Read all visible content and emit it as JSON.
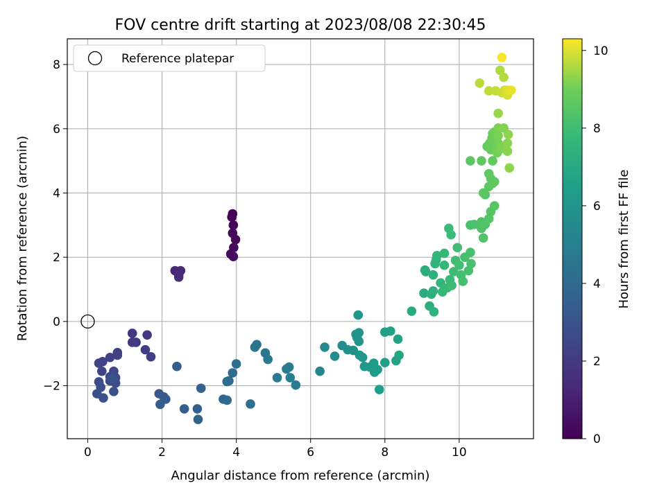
{
  "chart_data": {
    "type": "scatter",
    "title": "FOV centre drift starting at 2023/08/08 22:30:45",
    "xlabel": "Angular distance from reference (arcmin)",
    "ylabel": "Rotation from reference (arcmin)",
    "xlim": [
      -0.55,
      12.0
    ],
    "ylim": [
      -3.65,
      8.8
    ],
    "xticks": [
      0,
      2,
      4,
      6,
      8,
      10
    ],
    "yticks": [
      -2,
      0,
      2,
      4,
      6,
      8
    ],
    "grid": true,
    "legend": {
      "placement": "top-left",
      "entries": [
        "Reference platepar"
      ]
    },
    "reference_point": {
      "x": 0,
      "y": 0
    },
    "colorbar": {
      "label": "Hours from first FF file",
      "range": [
        0,
        10.3
      ],
      "ticks": [
        0,
        2,
        4,
        6,
        8,
        10
      ],
      "colormap": "viridis"
    },
    "points": [
      {
        "x": 3.9,
        "y": 3.35,
        "c": 0.05
      },
      {
        "x": 3.88,
        "y": 3.25,
        "c": 0.1
      },
      {
        "x": 3.92,
        "y": 3.0,
        "c": 0.15
      },
      {
        "x": 3.9,
        "y": 2.75,
        "c": 0.2
      },
      {
        "x": 3.98,
        "y": 2.55,
        "c": 0.25
      },
      {
        "x": 3.93,
        "y": 2.3,
        "c": 0.3
      },
      {
        "x": 3.85,
        "y": 2.1,
        "c": 0.35
      },
      {
        "x": 3.92,
        "y": 2.02,
        "c": 0.4
      },
      {
        "x": 2.35,
        "y": 1.58,
        "c": 1.3
      },
      {
        "x": 2.5,
        "y": 1.58,
        "c": 1.35
      },
      {
        "x": 2.45,
        "y": 1.45,
        "c": 1.4
      },
      {
        "x": 2.45,
        "y": 1.38,
        "c": 1.45
      },
      {
        "x": 1.2,
        "y": -0.37,
        "c": 1.9
      },
      {
        "x": 1.6,
        "y": -0.42,
        "c": 1.95
      },
      {
        "x": 1.3,
        "y": -0.65,
        "c": 2.0
      },
      {
        "x": 1.2,
        "y": -0.65,
        "c": 2.05
      },
      {
        "x": 1.55,
        "y": -0.88,
        "c": 2.1
      },
      {
        "x": 1.7,
        "y": -1.1,
        "c": 2.15
      },
      {
        "x": 0.8,
        "y": -0.97,
        "c": 2.2
      },
      {
        "x": 0.8,
        "y": -1.05,
        "c": 2.25
      },
      {
        "x": 0.6,
        "y": -1.12,
        "c": 2.3
      },
      {
        "x": 0.4,
        "y": -1.25,
        "c": 2.35
      },
      {
        "x": 0.3,
        "y": -1.3,
        "c": 2.4
      },
      {
        "x": 0.38,
        "y": -1.55,
        "c": 2.45
      },
      {
        "x": 0.7,
        "y": -1.55,
        "c": 2.5
      },
      {
        "x": 0.6,
        "y": -1.72,
        "c": 2.55
      },
      {
        "x": 0.75,
        "y": -1.75,
        "c": 2.6
      },
      {
        "x": 0.3,
        "y": -1.88,
        "c": 2.65
      },
      {
        "x": 0.6,
        "y": -1.85,
        "c": 2.7
      },
      {
        "x": 0.75,
        "y": -1.92,
        "c": 2.75
      },
      {
        "x": 0.35,
        "y": -2.05,
        "c": 2.8
      },
      {
        "x": 0.25,
        "y": -2.25,
        "c": 2.85
      },
      {
        "x": 0.7,
        "y": -2.18,
        "c": 2.9
      },
      {
        "x": 0.42,
        "y": -2.38,
        "c": 2.95
      },
      {
        "x": 0.65,
        "y": -1.78,
        "c": 3.0
      },
      {
        "x": 1.92,
        "y": -2.25,
        "c": 3.2
      },
      {
        "x": 2.05,
        "y": -2.35,
        "c": 3.25
      },
      {
        "x": 2.1,
        "y": -2.42,
        "c": 3.3
      },
      {
        "x": 1.95,
        "y": -2.58,
        "c": 3.35
      },
      {
        "x": 2.4,
        "y": -1.4,
        "c": 3.4
      },
      {
        "x": 2.6,
        "y": -2.72,
        "c": 3.5
      },
      {
        "x": 2.95,
        "y": -2.72,
        "c": 3.55
      },
      {
        "x": 3.05,
        "y": -2.08,
        "c": 3.6
      },
      {
        "x": 2.97,
        "y": -3.05,
        "c": 3.65
      },
      {
        "x": 3.65,
        "y": -2.42,
        "c": 3.9
      },
      {
        "x": 3.75,
        "y": -2.45,
        "c": 3.95
      },
      {
        "x": 3.75,
        "y": -1.87,
        "c": 4.0
      },
      {
        "x": 3.8,
        "y": -1.85,
        "c": 4.05
      },
      {
        "x": 3.9,
        "y": -1.6,
        "c": 4.1
      },
      {
        "x": 4.0,
        "y": -1.32,
        "c": 4.15
      },
      {
        "x": 4.38,
        "y": -2.57,
        "c": 4.25
      },
      {
        "x": 4.5,
        "y": -0.8,
        "c": 4.4
      },
      {
        "x": 4.55,
        "y": -0.72,
        "c": 4.45
      },
      {
        "x": 4.78,
        "y": -0.98,
        "c": 4.55
      },
      {
        "x": 4.85,
        "y": -1.18,
        "c": 4.6
      },
      {
        "x": 5.1,
        "y": -1.75,
        "c": 4.7
      },
      {
        "x": 5.35,
        "y": -1.48,
        "c": 4.8
      },
      {
        "x": 5.42,
        "y": -1.42,
        "c": 4.85
      },
      {
        "x": 5.45,
        "y": -1.75,
        "c": 4.9
      },
      {
        "x": 5.6,
        "y": -1.98,
        "c": 4.95
      },
      {
        "x": 6.25,
        "y": -1.55,
        "c": 5.4
      },
      {
        "x": 6.38,
        "y": -0.8,
        "c": 5.5
      },
      {
        "x": 6.65,
        "y": -1.08,
        "c": 5.6
      },
      {
        "x": 6.85,
        "y": -0.75,
        "c": 5.7
      },
      {
        "x": 7.0,
        "y": -0.88,
        "c": 5.75
      },
      {
        "x": 7.15,
        "y": -0.9,
        "c": 5.8
      },
      {
        "x": 7.22,
        "y": -0.4,
        "c": 5.9
      },
      {
        "x": 7.25,
        "y": -0.5,
        "c": 5.95
      },
      {
        "x": 7.3,
        "y": -0.62,
        "c": 6.0
      },
      {
        "x": 7.3,
        "y": -0.35,
        "c": 6.0
      },
      {
        "x": 7.28,
        "y": 0.2,
        "c": 6.05
      },
      {
        "x": 7.32,
        "y": -1.05,
        "c": 6.1
      },
      {
        "x": 7.4,
        "y": -1.12,
        "c": 6.15
      },
      {
        "x": 7.45,
        "y": -1.4,
        "c": 6.2
      },
      {
        "x": 7.6,
        "y": -1.42,
        "c": 6.25
      },
      {
        "x": 7.7,
        "y": -1.3,
        "c": 6.3
      },
      {
        "x": 7.72,
        "y": -1.58,
        "c": 6.35
      },
      {
        "x": 7.8,
        "y": -1.5,
        "c": 6.4
      },
      {
        "x": 7.85,
        "y": -2.12,
        "c": 6.45
      },
      {
        "x": 8.0,
        "y": -1.28,
        "c": 6.5
      },
      {
        "x": 8.0,
        "y": -0.33,
        "c": 6.55
      },
      {
        "x": 8.15,
        "y": -0.3,
        "c": 6.6
      },
      {
        "x": 8.3,
        "y": -1.22,
        "c": 6.65
      },
      {
        "x": 8.35,
        "y": -0.55,
        "c": 6.7
      },
      {
        "x": 8.38,
        "y": -1.05,
        "c": 6.75
      },
      {
        "x": 8.72,
        "y": 0.32,
        "c": 7.0
      },
      {
        "x": 9.05,
        "y": 0.88,
        "c": 7.1
      },
      {
        "x": 9.08,
        "y": 1.6,
        "c": 7.15
      },
      {
        "x": 9.1,
        "y": 1.55,
        "c": 7.2
      },
      {
        "x": 9.2,
        "y": 0.48,
        "c": 7.25
      },
      {
        "x": 9.25,
        "y": 0.85,
        "c": 7.3
      },
      {
        "x": 9.3,
        "y": 0.95,
        "c": 7.35
      },
      {
        "x": 9.3,
        "y": 1.45,
        "c": 7.4
      },
      {
        "x": 9.32,
        "y": 0.3,
        "c": 7.45
      },
      {
        "x": 9.35,
        "y": 1.8,
        "c": 7.5
      },
      {
        "x": 9.38,
        "y": 1.92,
        "c": 7.55
      },
      {
        "x": 9.4,
        "y": 2.05,
        "c": 7.6
      },
      {
        "x": 9.5,
        "y": 1.2,
        "c": 7.65
      },
      {
        "x": 9.55,
        "y": 0.92,
        "c": 7.7
      },
      {
        "x": 9.6,
        "y": 1.75,
        "c": 7.75
      },
      {
        "x": 9.6,
        "y": 2.12,
        "c": 7.75
      },
      {
        "x": 9.68,
        "y": 1.05,
        "c": 7.8
      },
      {
        "x": 9.72,
        "y": 2.9,
        "c": 7.85
      },
      {
        "x": 9.75,
        "y": 1.3,
        "c": 7.85
      },
      {
        "x": 9.78,
        "y": 2.7,
        "c": 7.9
      },
      {
        "x": 9.8,
        "y": 1.12,
        "c": 7.9
      },
      {
        "x": 9.85,
        "y": 1.55,
        "c": 7.95
      },
      {
        "x": 9.9,
        "y": 1.9,
        "c": 8.0
      },
      {
        "x": 9.95,
        "y": 2.3,
        "c": 8.0
      },
      {
        "x": 10.0,
        "y": 1.75,
        "c": 8.05
      },
      {
        "x": 10.05,
        "y": 1.45,
        "c": 8.05
      },
      {
        "x": 10.1,
        "y": 1.25,
        "c": 8.1
      },
      {
        "x": 10.15,
        "y": 2.0,
        "c": 8.1
      },
      {
        "x": 10.25,
        "y": 1.58,
        "c": 8.15
      },
      {
        "x": 10.3,
        "y": 2.15,
        "c": 8.15
      },
      {
        "x": 10.32,
        "y": 1.8,
        "c": 8.2
      },
      {
        "x": 10.3,
        "y": 3.0,
        "c": 8.2
      },
      {
        "x": 10.3,
        "y": 5.0,
        "c": 8.6
      },
      {
        "x": 10.4,
        "y": 3.02,
        "c": 8.25
      },
      {
        "x": 10.55,
        "y": 3.0,
        "c": 8.3
      },
      {
        "x": 10.6,
        "y": 3.1,
        "c": 8.3
      },
      {
        "x": 10.6,
        "y": 2.9,
        "c": 8.35
      },
      {
        "x": 10.65,
        "y": 2.6,
        "c": 8.35
      },
      {
        "x": 10.7,
        "y": 3.02,
        "c": 8.4
      },
      {
        "x": 10.7,
        "y": 3.95,
        "c": 8.45
      },
      {
        "x": 10.8,
        "y": 3.2,
        "c": 8.45
      },
      {
        "x": 10.85,
        "y": 3.42,
        "c": 8.5
      },
      {
        "x": 10.95,
        "y": 3.6,
        "c": 8.5
      },
      {
        "x": 10.6,
        "y": 5.0,
        "c": 8.7
      },
      {
        "x": 10.65,
        "y": 4.0,
        "c": 8.55
      },
      {
        "x": 10.8,
        "y": 4.2,
        "c": 8.6
      },
      {
        "x": 10.85,
        "y": 4.45,
        "c": 8.65
      },
      {
        "x": 10.9,
        "y": 4.3,
        "c": 8.65
      },
      {
        "x": 10.95,
        "y": 4.35,
        "c": 8.7
      },
      {
        "x": 10.8,
        "y": 4.6,
        "c": 8.7
      },
      {
        "x": 10.9,
        "y": 5.0,
        "c": 8.75
      },
      {
        "x": 10.75,
        "y": 5.45,
        "c": 8.8
      },
      {
        "x": 10.82,
        "y": 5.55,
        "c": 8.85
      },
      {
        "x": 10.85,
        "y": 5.35,
        "c": 8.85
      },
      {
        "x": 10.88,
        "y": 5.7,
        "c": 8.9
      },
      {
        "x": 10.9,
        "y": 5.85,
        "c": 8.95
      },
      {
        "x": 10.95,
        "y": 5.9,
        "c": 9.0
      },
      {
        "x": 11.0,
        "y": 5.4,
        "c": 9.0
      },
      {
        "x": 11.02,
        "y": 5.25,
        "c": 9.05
      },
      {
        "x": 11.05,
        "y": 5.55,
        "c": 9.05
      },
      {
        "x": 11.05,
        "y": 5.78,
        "c": 9.1
      },
      {
        "x": 11.08,
        "y": 5.35,
        "c": 9.1
      },
      {
        "x": 11.05,
        "y": 6.02,
        "c": 9.15
      },
      {
        "x": 11.15,
        "y": 5.45,
        "c": 9.15
      },
      {
        "x": 11.2,
        "y": 6.02,
        "c": 9.2
      },
      {
        "x": 11.3,
        "y": 5.55,
        "c": 9.25
      },
      {
        "x": 11.3,
        "y": 5.3,
        "c": 9.25
      },
      {
        "x": 11.32,
        "y": 5.82,
        "c": 9.3
      },
      {
        "x": 11.35,
        "y": 4.78,
        "c": 9.3
      },
      {
        "x": 11.05,
        "y": 6.48,
        "c": 9.4
      },
      {
        "x": 11.1,
        "y": 7.82,
        "c": 9.6
      },
      {
        "x": 11.2,
        "y": 7.6,
        "c": 9.65
      },
      {
        "x": 10.55,
        "y": 7.42,
        "c": 9.7
      },
      {
        "x": 10.8,
        "y": 7.18,
        "c": 9.75
      },
      {
        "x": 10.98,
        "y": 7.18,
        "c": 9.8
      },
      {
        "x": 11.15,
        "y": 7.12,
        "c": 9.85
      },
      {
        "x": 11.22,
        "y": 7.2,
        "c": 9.9
      },
      {
        "x": 11.3,
        "y": 7.05,
        "c": 9.95
      },
      {
        "x": 11.3,
        "y": 7.2,
        "c": 10.0
      },
      {
        "x": 11.35,
        "y": 7.18,
        "c": 10.05
      },
      {
        "x": 11.4,
        "y": 7.2,
        "c": 10.1
      },
      {
        "x": 11.15,
        "y": 8.22,
        "c": 10.25
      }
    ]
  }
}
